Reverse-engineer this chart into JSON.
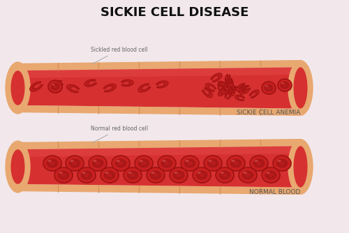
{
  "title": "SICKIE CELL DISEASE",
  "title_fontsize": 13,
  "title_fontweight": "bold",
  "bg_color": "#f2e8ec",
  "vessel_wall_color": "#e8a870",
  "vessel_wall_light": "#f0c090",
  "vessel_wall_dark": "#d08850",
  "vessel_inner_color": "#d63030",
  "vessel_inner_light": "#e85050",
  "vessel_inner_dark": "#b82020",
  "rbc_fill": "#c82020",
  "rbc_edge": "#991010",
  "rbc_center": "#aa1818",
  "rbc_light": "#e04040",
  "label1": "SICKIE CELL ANEMIA",
  "label2": "NORMAL BLOOD",
  "annotation1": "Sickled red blood cell",
  "annotation2": "Normal red blood cell",
  "label_color": "#555555",
  "annot_color": "#666666"
}
